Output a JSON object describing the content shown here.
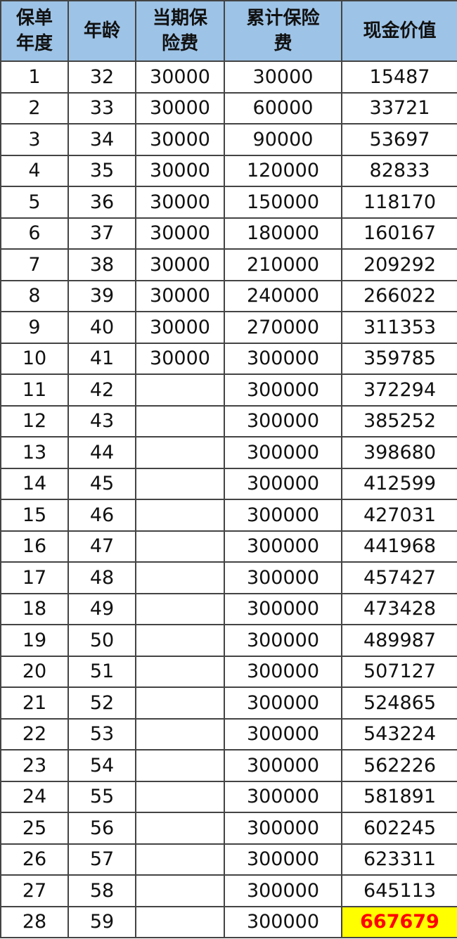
{
  "table": {
    "headers": [
      "保单\n年度",
      "年龄",
      "当期保\n险费",
      "累计保险\n费",
      "现金价值"
    ],
    "rows": [
      [
        "1",
        "32",
        "30000",
        "30000",
        "15487"
      ],
      [
        "2",
        "33",
        "30000",
        "60000",
        "33721"
      ],
      [
        "3",
        "34",
        "30000",
        "90000",
        "53697"
      ],
      [
        "4",
        "35",
        "30000",
        "120000",
        "82833"
      ],
      [
        "5",
        "36",
        "30000",
        "150000",
        "118170"
      ],
      [
        "6",
        "37",
        "30000",
        "180000",
        "160167"
      ],
      [
        "7",
        "38",
        "30000",
        "210000",
        "209292"
      ],
      [
        "8",
        "39",
        "30000",
        "240000",
        "266022"
      ],
      [
        "9",
        "40",
        "30000",
        "270000",
        "311353"
      ],
      [
        "10",
        "41",
        "30000",
        "300000",
        "359785"
      ],
      [
        "11",
        "42",
        "",
        "300000",
        "372294"
      ],
      [
        "12",
        "43",
        "",
        "300000",
        "385252"
      ],
      [
        "13",
        "44",
        "",
        "300000",
        "398680"
      ],
      [
        "14",
        "45",
        "",
        "300000",
        "412599"
      ],
      [
        "15",
        "46",
        "",
        "300000",
        "427031"
      ],
      [
        "16",
        "47",
        "",
        "300000",
        "441968"
      ],
      [
        "17",
        "48",
        "",
        "300000",
        "457427"
      ],
      [
        "18",
        "49",
        "",
        "300000",
        "473428"
      ],
      [
        "19",
        "50",
        "",
        "300000",
        "489987"
      ],
      [
        "20",
        "51",
        "",
        "300000",
        "507127"
      ],
      [
        "21",
        "52",
        "",
        "300000",
        "524865"
      ],
      [
        "22",
        "53",
        "",
        "300000",
        "543224"
      ],
      [
        "23",
        "54",
        "",
        "300000",
        "562226"
      ],
      [
        "24",
        "55",
        "",
        "300000",
        "581891"
      ],
      [
        "25",
        "56",
        "",
        "300000",
        "602245"
      ],
      [
        "26",
        "57",
        "",
        "300000",
        "623311"
      ],
      [
        "27",
        "58",
        "",
        "300000",
        "645113"
      ],
      [
        "28",
        "59",
        "",
        "300000",
        "667679"
      ]
    ],
    "highlighted_cell": {
      "row": 27,
      "col": 4,
      "background": "#ffff00",
      "color": "#ff0000"
    },
    "header_background": "#9dc3e6"
  }
}
